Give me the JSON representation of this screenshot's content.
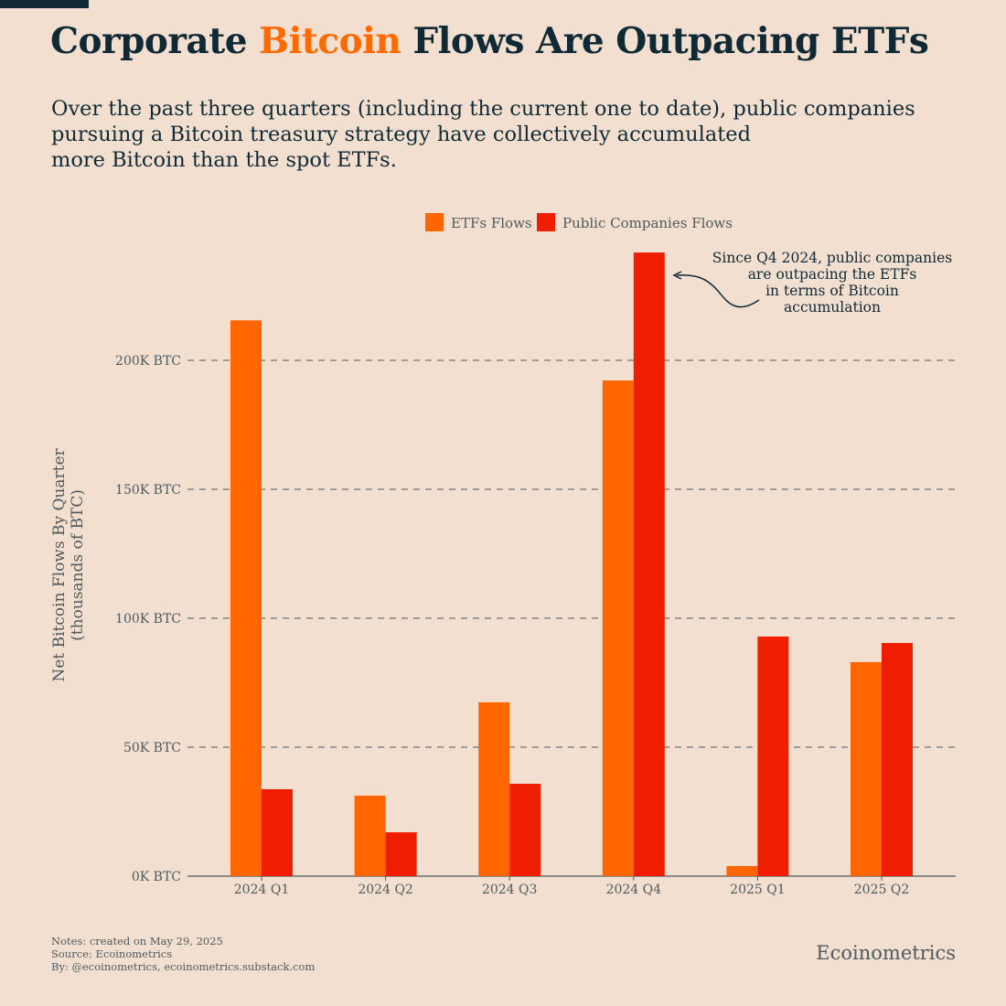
{
  "header": {
    "title_pre": "Corporate ",
    "title_highlight": "Bitcoin",
    "title_post": " Flows Are Outpacing ETFs",
    "subtitle_lines": [
      "Over the past three quarters (including the current one to date), public companies",
      "pursuing a Bitcoin treasury strategy have collectively accumulated",
      "more Bitcoin than the spot ETFs."
    ]
  },
  "chart_data": {
    "type": "bar",
    "categories": [
      "2024 Q1",
      "2024 Q2",
      "2024 Q3",
      "2024 Q4",
      "2025 Q1",
      "2025 Q2"
    ],
    "series": [
      {
        "name": "ETFs Flows",
        "color": "#ff6600",
        "values": [
          215.5,
          31.2,
          67.4,
          192.2,
          3.9,
          83.0
        ]
      },
      {
        "name": "Public Companies Flows",
        "color": "#f01e00",
        "values": [
          33.7,
          17.0,
          35.8,
          241.8,
          92.9,
          90.4
        ]
      }
    ],
    "ylabel_lines": [
      "Net Bitcoin Flows By Quarter",
      "(thousands of BTC)"
    ],
    "yticks": [
      0,
      50,
      100,
      150,
      200
    ],
    "ytick_labels": [
      "0K BTC",
      "50K BTC",
      "100K BTC",
      "150K BTC",
      "200K BTC"
    ],
    "ylim": [
      0,
      250
    ],
    "grid": true,
    "legend_position": "top-center",
    "annotation_lines": [
      "Since Q4 2024, public companies",
      "are outpacing the ETFs",
      "in terms of Bitcoin",
      "accumulation"
    ]
  },
  "footer": {
    "notes": [
      "Notes: created on May 29, 2025",
      "Source: Ecoinometrics",
      "By: @ecoinometrics, ecoinometrics.substack.com"
    ],
    "brand": "Ecoinometrics"
  }
}
